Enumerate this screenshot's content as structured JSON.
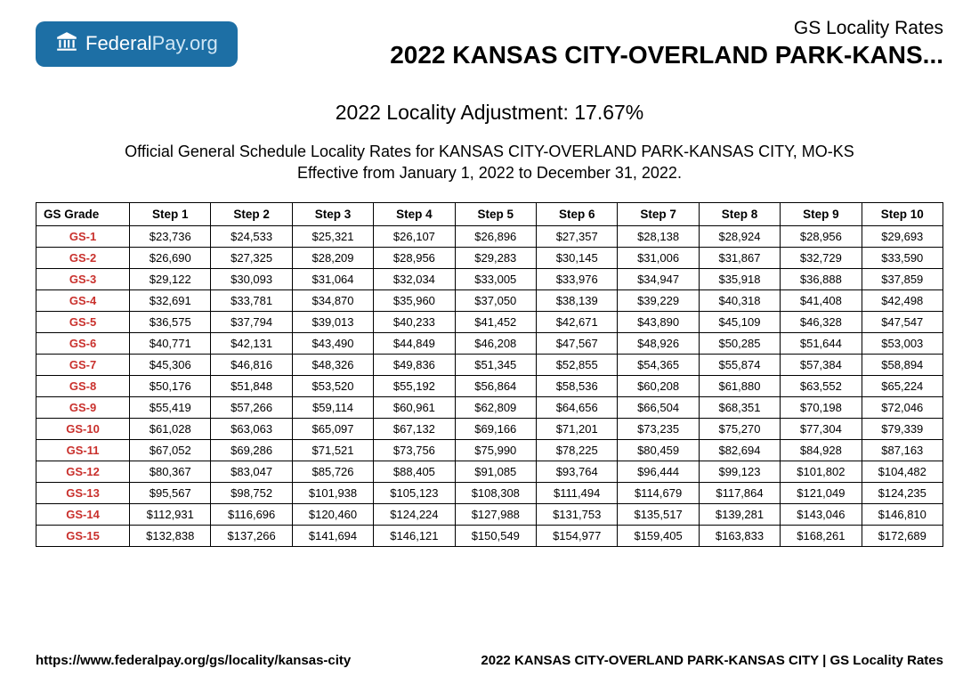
{
  "logo": {
    "text_bold": "Federal",
    "text_light": "Pay.org"
  },
  "header": {
    "subtitle": "GS Locality Rates",
    "title": "2022 KANSAS CITY-OVERLAND PARK-KANS..."
  },
  "adjustment": "2022 Locality Adjustment: 17.67%",
  "description_line1": "Official General Schedule Locality Rates for KANSAS CITY-OVERLAND PARK-KANSAS CITY, MO-KS",
  "description_line2": "Effective from January 1, 2022 to December 31, 2022.",
  "table": {
    "grade_header": "GS Grade",
    "step_headers": [
      "Step 1",
      "Step 2",
      "Step 3",
      "Step 4",
      "Step 5",
      "Step 6",
      "Step 7",
      "Step 8",
      "Step 9",
      "Step 10"
    ],
    "rows": [
      {
        "grade": "GS-1",
        "steps": [
          "$23,736",
          "$24,533",
          "$25,321",
          "$26,107",
          "$26,896",
          "$27,357",
          "$28,138",
          "$28,924",
          "$28,956",
          "$29,693"
        ]
      },
      {
        "grade": "GS-2",
        "steps": [
          "$26,690",
          "$27,325",
          "$28,209",
          "$28,956",
          "$29,283",
          "$30,145",
          "$31,006",
          "$31,867",
          "$32,729",
          "$33,590"
        ]
      },
      {
        "grade": "GS-3",
        "steps": [
          "$29,122",
          "$30,093",
          "$31,064",
          "$32,034",
          "$33,005",
          "$33,976",
          "$34,947",
          "$35,918",
          "$36,888",
          "$37,859"
        ]
      },
      {
        "grade": "GS-4",
        "steps": [
          "$32,691",
          "$33,781",
          "$34,870",
          "$35,960",
          "$37,050",
          "$38,139",
          "$39,229",
          "$40,318",
          "$41,408",
          "$42,498"
        ]
      },
      {
        "grade": "GS-5",
        "steps": [
          "$36,575",
          "$37,794",
          "$39,013",
          "$40,233",
          "$41,452",
          "$42,671",
          "$43,890",
          "$45,109",
          "$46,328",
          "$47,547"
        ]
      },
      {
        "grade": "GS-6",
        "steps": [
          "$40,771",
          "$42,131",
          "$43,490",
          "$44,849",
          "$46,208",
          "$47,567",
          "$48,926",
          "$50,285",
          "$51,644",
          "$53,003"
        ]
      },
      {
        "grade": "GS-7",
        "steps": [
          "$45,306",
          "$46,816",
          "$48,326",
          "$49,836",
          "$51,345",
          "$52,855",
          "$54,365",
          "$55,874",
          "$57,384",
          "$58,894"
        ]
      },
      {
        "grade": "GS-8",
        "steps": [
          "$50,176",
          "$51,848",
          "$53,520",
          "$55,192",
          "$56,864",
          "$58,536",
          "$60,208",
          "$61,880",
          "$63,552",
          "$65,224"
        ]
      },
      {
        "grade": "GS-9",
        "steps": [
          "$55,419",
          "$57,266",
          "$59,114",
          "$60,961",
          "$62,809",
          "$64,656",
          "$66,504",
          "$68,351",
          "$70,198",
          "$72,046"
        ]
      },
      {
        "grade": "GS-10",
        "steps": [
          "$61,028",
          "$63,063",
          "$65,097",
          "$67,132",
          "$69,166",
          "$71,201",
          "$73,235",
          "$75,270",
          "$77,304",
          "$79,339"
        ]
      },
      {
        "grade": "GS-11",
        "steps": [
          "$67,052",
          "$69,286",
          "$71,521",
          "$73,756",
          "$75,990",
          "$78,225",
          "$80,459",
          "$82,694",
          "$84,928",
          "$87,163"
        ]
      },
      {
        "grade": "GS-12",
        "steps": [
          "$80,367",
          "$83,047",
          "$85,726",
          "$88,405",
          "$91,085",
          "$93,764",
          "$96,444",
          "$99,123",
          "$101,802",
          "$104,482"
        ]
      },
      {
        "grade": "GS-13",
        "steps": [
          "$95,567",
          "$98,752",
          "$101,938",
          "$105,123",
          "$108,308",
          "$111,494",
          "$114,679",
          "$117,864",
          "$121,049",
          "$124,235"
        ]
      },
      {
        "grade": "GS-14",
        "steps": [
          "$112,931",
          "$116,696",
          "$120,460",
          "$124,224",
          "$127,988",
          "$131,753",
          "$135,517",
          "$139,281",
          "$143,046",
          "$146,810"
        ]
      },
      {
        "grade": "GS-15",
        "steps": [
          "$132,838",
          "$137,266",
          "$141,694",
          "$146,121",
          "$150,549",
          "$154,977",
          "$159,405",
          "$163,833",
          "$168,261",
          "$172,689"
        ]
      }
    ]
  },
  "footer": {
    "url": "https://www.federalpay.org/gs/locality/kansas-city",
    "label": "2022 KANSAS CITY-OVERLAND PARK-KANSAS CITY | GS Locality Rates"
  },
  "colors": {
    "logo_bg": "#1d6fa5",
    "grade_text": "#c9302c"
  }
}
